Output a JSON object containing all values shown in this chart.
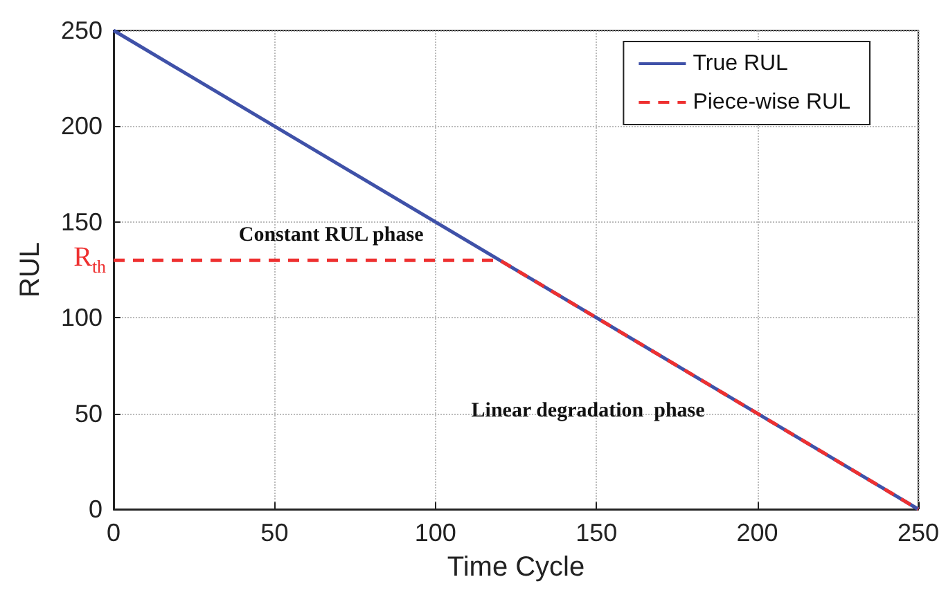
{
  "chart_data": {
    "type": "line",
    "xlabel": "Time Cycle",
    "ylabel": "RUL",
    "xlim": [
      0,
      250
    ],
    "xticks": [
      0,
      50,
      100,
      150,
      200,
      250
    ],
    "ylim": [
      0,
      250
    ],
    "yticks": [
      0,
      50,
      100,
      150,
      200,
      250
    ],
    "series": [
      {
        "name": "True RUL",
        "color": "#3f51a8",
        "x": [
          0,
          250
        ],
        "values": [
          250,
          0
        ],
        "line_style": "solid"
      },
      {
        "name": "Piece-wise RUL",
        "color": "#ee3030",
        "x": [
          0,
          120,
          250
        ],
        "values": [
          130,
          130,
          0
        ],
        "line_style": "dashed"
      }
    ],
    "annotations": [
      "R$_{th}$",
      "Constant RUL phase",
      "Linear degradation  phase"
    ],
    "grid": true,
    "legend": "top right",
    "marker": "none"
  }
}
